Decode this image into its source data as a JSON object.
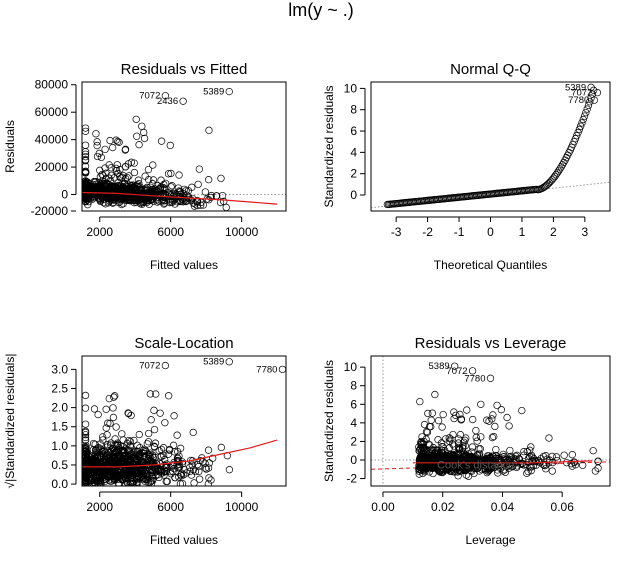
{
  "title": "lm(y ~ .)",
  "colors": {
    "points": "#000000",
    "smoother": "#e41a1c",
    "reference": "#999999"
  },
  "chart_data": [
    {
      "type": "scatter",
      "title": "Residuals vs Fitted",
      "xlabel": "Fitted values",
      "ylabel": "Residuals",
      "xlim": [
        1000,
        12500
      ],
      "ylim": [
        -12000,
        82000
      ],
      "xticks": [
        2000,
        6000,
        10000
      ],
      "yticks": [
        -20000,
        0,
        20000,
        40000,
        60000,
        80000
      ],
      "labeled_points": [
        {
          "label": "7072",
          "x": 5700,
          "y": 72000
        },
        {
          "label": "5389",
          "x": 9300,
          "y": 75000
        },
        {
          "label": "2436",
          "x": 6700,
          "y": 68000
        }
      ],
      "smoother": [
        [
          1000,
          1500
        ],
        [
          3000,
          800
        ],
        [
          5000,
          -900
        ],
        [
          7000,
          -2500
        ],
        [
          9000,
          -4000
        ],
        [
          12000,
          -7000
        ]
      ],
      "reference": {
        "type": "h",
        "value": 0
      }
    },
    {
      "type": "scatter",
      "title": "Normal Q-Q",
      "xlabel": "Theoretical Quantiles",
      "ylabel": "Standardized residuals",
      "xlim": [
        -3.8,
        3.8
      ],
      "ylim": [
        -1.5,
        10.6
      ],
      "xticks": [
        -3,
        -2,
        -1,
        0,
        1,
        2,
        3
      ],
      "yticks": [
        0,
        2,
        4,
        6,
        8,
        10
      ],
      "labeled_points": [
        {
          "label": "5389",
          "x": 3.2,
          "y": 10.1
        },
        {
          "label": "7072",
          "x": 3.4,
          "y": 9.6
        },
        {
          "label": "7780",
          "x": 3.3,
          "y": 8.9
        }
      ],
      "reference": {
        "type": "line",
        "points": [
          [
            -3.8,
            -1.2
          ],
          [
            3.8,
            1.2
          ]
        ]
      }
    },
    {
      "type": "scatter",
      "title": "Scale-Location",
      "xlabel": "Fitted values",
      "ylabel": "√|Standardized residuals|",
      "xlim": [
        1000,
        12500
      ],
      "ylim": [
        -0.05,
        3.35
      ],
      "xticks": [
        2000,
        6000,
        10000
      ],
      "yticks": [
        0.0,
        0.5,
        1.0,
        1.5,
        2.0,
        2.5,
        3.0
      ],
      "labeled_points": [
        {
          "label": "7072",
          "x": 5700,
          "y": 3.1
        },
        {
          "label": "5389",
          "x": 9300,
          "y": 3.2
        },
        {
          "label": "7780",
          "x": 12300,
          "y": 3.0
        }
      ],
      "smoother": [
        [
          1000,
          0.45
        ],
        [
          3000,
          0.45
        ],
        [
          5000,
          0.5
        ],
        [
          7000,
          0.6
        ],
        [
          9000,
          0.8
        ],
        [
          10500,
          0.95
        ],
        [
          12000,
          1.15
        ]
      ]
    },
    {
      "type": "scatter",
      "title": "Residuals vs Leverage",
      "xlabel": "Leverage",
      "ylabel": "Standardized residuals",
      "xlim": [
        -0.004,
        0.076
      ],
      "ylim": [
        -2.8,
        11.2
      ],
      "xticks": [
        0.0,
        0.02,
        0.04,
        0.06
      ],
      "yticks": [
        -2,
        0,
        2,
        4,
        6,
        8,
        10
      ],
      "labeled_points": [
        {
          "label": "5389",
          "x": 0.024,
          "y": 10.1
        },
        {
          "label": "7072",
          "x": 0.03,
          "y": 9.6
        },
        {
          "label": "7780",
          "x": 0.036,
          "y": 8.8
        }
      ],
      "annotation": "Cook's distance",
      "smoother": [
        [
          0.01,
          -0.3
        ],
        [
          0.03,
          -0.3
        ],
        [
          0.05,
          -0.3
        ],
        [
          0.07,
          -0.1
        ]
      ],
      "reference": {
        "type": "h",
        "value": 0
      }
    }
  ]
}
